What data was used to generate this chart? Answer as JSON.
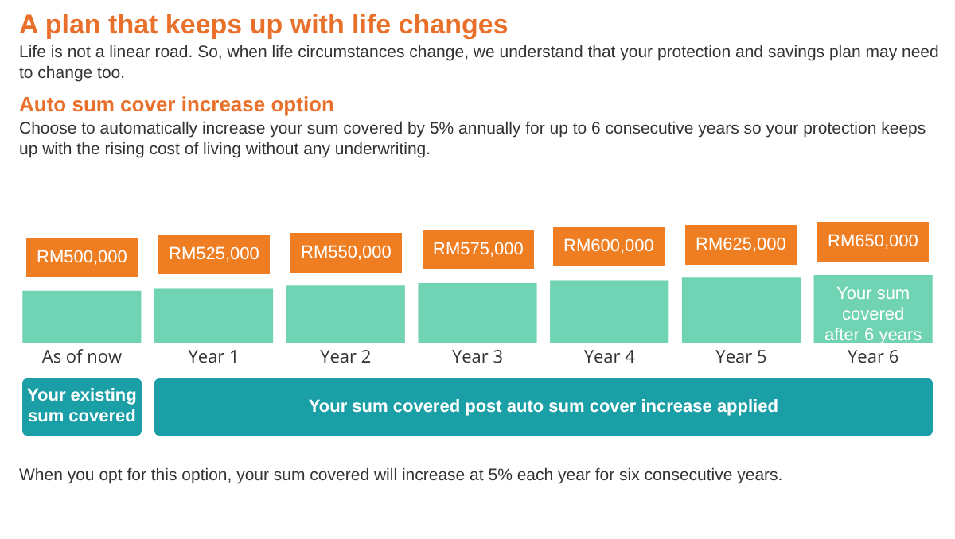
{
  "chart_data": {
    "type": "bar",
    "title": "A plan that keeps up with life changes",
    "subtitle": "Life is not a linear road. So, when life circumstances change, we understand that your protection and savings plan may need to change too.",
    "categories": [
      "As of now",
      "Year 1",
      "Year 2",
      "Year 3",
      "Year 4",
      "Year 5",
      "Year 6"
    ],
    "values": [
      500000,
      525000,
      550000,
      575000,
      600000,
      625000,
      650000
    ],
    "value_labels": [
      "RM500,000",
      "RM525,000",
      "RM550,000",
      "RM575,000",
      "RM600,000",
      "RM625,000",
      "RM650,000"
    ],
    "color": "#70d3b3",
    "tick_labels": "x",
    "annotations": [
      "Auto sum cover increase option",
      "Choose to automatically increase your sum covered by 5% annually for up to 6 consecutive years so your protection keeps up with the rising cost of living without any underwriting.",
      "Your sum covered after 6 years",
      "Your existing sum covered",
      "Your sum covered post auto sum cover increase applied",
      "When you opt for this option, your sum covered will increase at 5% each year for six consecutive years."
    ]
  }
}
